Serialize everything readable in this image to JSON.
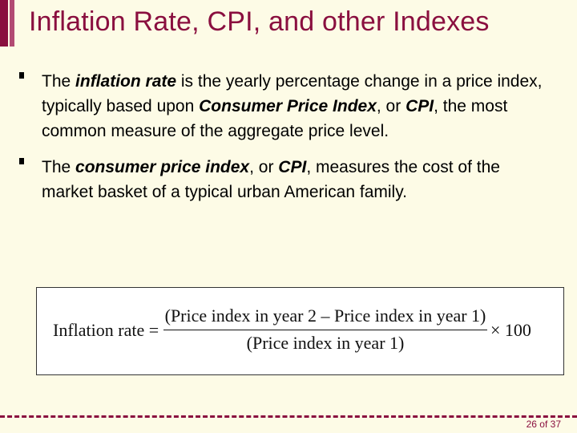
{
  "slide": {
    "title": "Inflation Rate, CPI, and other Indexes",
    "bullets": [
      {
        "t1": "The ",
        "t2": "inflation rate",
        "t3": " is the yearly percentage change in a price index, typically based upon ",
        "t4": "Consumer Price Index",
        "t5": ", or ",
        "t6": "CPI",
        "t7": ", the most common measure of the aggregate price level."
      },
      {
        "t1": "The ",
        "t2": "consumer price index",
        "t3": ", or ",
        "t4": "CPI",
        "t5": ", measures the cost of the market basket of a typical urban American family."
      }
    ],
    "formula": {
      "label": "Inflation rate =",
      "numerator": "(Price index in year 2 – Price index in year 1)",
      "denominator": "(Price index in year 1)",
      "multiplier": "× 100"
    },
    "page": "26 of 37",
    "colors": {
      "accent": "#8a0f3f",
      "background": "#fdfbe6"
    }
  }
}
